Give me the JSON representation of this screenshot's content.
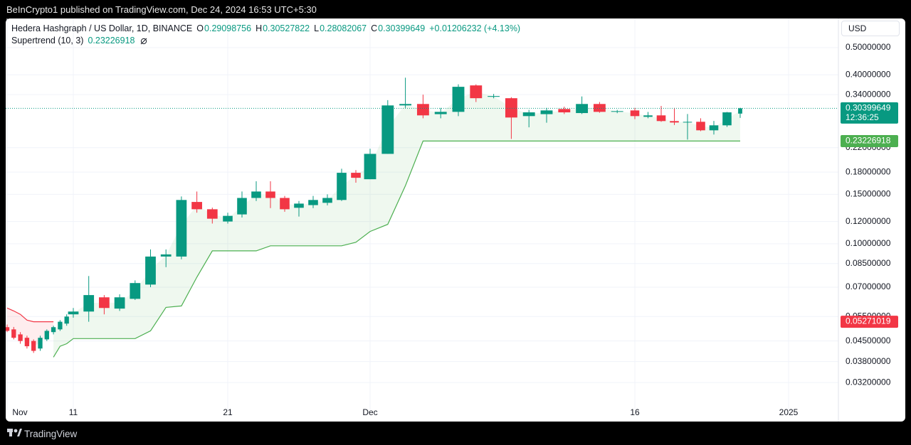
{
  "header": {
    "text": "BeInCrypto1 published on TradingView.com, Dec 24, 2024 16:53 UTC+5:30"
  },
  "footer": {
    "logo_text": "TradingView"
  },
  "chart_data": {
    "type": "candlestick",
    "title": "Hedera Hashgraph / US Dollar, 1D, BINANCE",
    "ohlc_prefixes": [
      "O",
      "H",
      "L",
      "C"
    ],
    "change_label": "+0.01206232 (+4.13%)",
    "currency": "USD",
    "countdown": "12:36:25",
    "categories": [
      "Nov",
      null,
      null,
      null,
      null,
      null,
      null,
      null,
      null,
      null,
      "11",
      null,
      null,
      null,
      null,
      null,
      null,
      null,
      null,
      null,
      "21",
      null,
      null,
      null,
      null,
      null,
      null,
      null,
      null,
      null,
      "Dec",
      null,
      null,
      null,
      null,
      null,
      null,
      null,
      null,
      null,
      null,
      null,
      null,
      null,
      null,
      "16",
      null,
      null,
      null,
      null,
      null,
      null,
      null,
      null,
      null,
      null,
      null,
      null,
      null,
      null,
      null,
      "2025"
    ],
    "open": [
      0.0504,
      0.0495,
      0.0475,
      0.0462,
      0.045,
      0.0423,
      0.0456,
      0.0484,
      0.0495,
      0.0519,
      0.056,
      0.0573,
      0.0644,
      0.0587,
      0.0636,
      0.0715,
      0.09,
      0.09,
      0.1409,
      0.1327,
      0.12,
      0.1272,
      0.1456,
      0.1535,
      0.1456,
      0.1343,
      0.1373,
      0.1399,
      0.1432,
      0.179,
      0.1698,
      0.2091,
      0.3112,
      0.3149,
      0.2897,
      0.2952,
      0.3668,
      0.334,
      0.3302,
      0.2851,
      0.2897,
      0.3022,
      0.2923,
      0.3149,
      0.296,
      0.2987,
      0.2834,
      0.2868,
      0.2737,
      0.2705,
      0.2721,
      0.2537,
      0.2643,
      0.29098756,
      null,
      null,
      null,
      null,
      null,
      null,
      null,
      null
    ],
    "high": [
      0.0515,
      0.0505,
      0.0484,
      0.047,
      0.0456,
      0.047,
      0.0495,
      0.051,
      0.0534,
      0.056,
      0.059,
      0.0767,
      0.0656,
      0.066,
      0.074,
      0.0954,
      0.0954,
      0.1474,
      0.1535,
      0.1345,
      0.129,
      0.1535,
      0.167,
      0.167,
      0.148,
      0.142,
      0.148,
      0.15,
      0.185,
      0.183,
      0.218,
      0.325,
      0.3908,
      0.34,
      0.305,
      0.37,
      0.37,
      0.342,
      0.333,
      0.3,
      0.305,
      0.308,
      0.335,
      0.32,
      0.3,
      0.305,
      0.295,
      0.31,
      0.305,
      0.29,
      0.28,
      0.274,
      0.295,
      0.30527822,
      null,
      null,
      null,
      null,
      null,
      null,
      null,
      null
    ],
    "low": [
      0.0484,
      0.0456,
      0.044,
      0.0423,
      0.0408,
      0.0415,
      0.045,
      0.0475,
      0.0489,
      0.051,
      0.0545,
      0.0527,
      0.056,
      0.0576,
      0.063,
      0.07,
      0.0825,
      0.088,
      0.129,
      0.118,
      0.118,
      0.124,
      0.142,
      0.134,
      0.13,
      0.125,
      0.134,
      0.137,
      0.142,
      0.165,
      0.1698,
      0.2091,
      0.305,
      0.28,
      0.28,
      0.285,
      0.32,
      0.33,
      0.2364,
      0.26,
      0.27,
      0.29,
      0.29,
      0.293,
      0.292,
      0.278,
      0.28,
      0.272,
      0.265,
      0.235,
      0.252,
      0.245,
      0.261,
      0.28082067,
      null,
      null,
      null,
      null,
      null,
      null,
      null,
      null
    ],
    "close": [
      0.0489,
      0.0462,
      0.045,
      0.0431,
      0.0415,
      0.0462,
      0.0489,
      0.0504,
      0.0527,
      0.055,
      0.0573,
      0.0656,
      0.059,
      0.0644,
      0.0724,
      0.09,
      0.0916,
      0.1432,
      0.1327,
      0.1228,
      0.1257,
      0.1456,
      0.1535,
      0.1456,
      0.1327,
      0.139,
      0.1432,
      0.1456,
      0.179,
      0.1718,
      0.2091,
      0.3112,
      0.3149,
      0.2868,
      0.2952,
      0.3626,
      0.3302,
      0.3361,
      0.2818,
      0.294,
      0.2987,
      0.294,
      0.3149,
      0.2952,
      0.297,
      0.2851,
      0.2868,
      0.2737,
      0.2705,
      0.272,
      0.2537,
      0.2643,
      0.294,
      0.30399649,
      null,
      null,
      null,
      null,
      null,
      null,
      null,
      null
    ],
    "up_color": "#089981",
    "down_color": "#f23645",
    "indicator": {
      "name": "Supertrend (10, 3)",
      "up_color": "#4caf50",
      "down_color": "#f23645",
      "up": [
        null,
        null,
        null,
        null,
        null,
        null,
        null,
        0.0394,
        0.0431,
        0.044,
        0.0459,
        0.0459,
        0.0459,
        0.0459,
        0.0459,
        0.0489,
        0.0593,
        0.06,
        0.076,
        0.0943,
        0.0943,
        0.0943,
        0.0943,
        0.0983,
        0.0983,
        0.0983,
        0.0983,
        0.0983,
        0.0983,
        0.1012,
        0.1106,
        0.1172,
        0.1609,
        0.23226918,
        0.23226918,
        0.23226918,
        0.23226918,
        0.23226918,
        0.23226918,
        0.23226918,
        0.23226918,
        0.23226918,
        0.23226918,
        0.23226918,
        0.23226918,
        0.23226918,
        0.23226918,
        0.23226918,
        0.23226918,
        0.23226918,
        0.23226918,
        0.23226918,
        0.23226918,
        0.23226918,
        null,
        null,
        null,
        null,
        null,
        null,
        null,
        null
      ],
      "down": [
        0.059,
        0.0576,
        0.056,
        0.0534,
        0.05271019,
        0.05271019,
        0.05271019,
        0.05271019,
        null,
        null,
        null,
        null,
        null,
        null,
        null,
        null,
        null,
        null,
        null,
        null,
        null,
        null,
        null,
        null,
        null,
        null,
        null,
        null,
        null,
        null,
        null,
        null,
        null,
        null,
        null,
        null,
        null,
        null,
        null,
        null,
        null,
        null,
        null,
        null,
        null,
        null,
        null,
        null,
        null,
        null,
        null,
        null,
        null,
        null,
        null,
        null,
        null,
        null,
        null,
        null,
        null,
        null
      ]
    },
    "log_scale": true,
    "grid": true,
    "ylim": [
      0.0258,
      0.628
    ],
    "yticks": [
      {
        "value": 0.5,
        "label": "0.50000000"
      },
      {
        "value": 0.4,
        "label": "0.40000000"
      },
      {
        "value": 0.34,
        "label": "0.34000000"
      },
      {
        "value": 0.22,
        "label": "0.22000000"
      },
      {
        "value": 0.18,
        "label": "0.18000000"
      },
      {
        "value": 0.15,
        "label": "0.15000000"
      },
      {
        "value": 0.12,
        "label": "0.12000000"
      },
      {
        "value": 0.1,
        "label": "0.10000000"
      },
      {
        "value": 0.085,
        "label": "0.08500000"
      },
      {
        "value": 0.07,
        "label": "0.07000000"
      },
      {
        "value": 0.055,
        "label": "0.05500000"
      },
      {
        "value": 0.045,
        "label": "0.04500000"
      },
      {
        "value": 0.038,
        "label": "0.03800000"
      },
      {
        "value": 0.032,
        "label": "0.03200000"
      }
    ]
  }
}
